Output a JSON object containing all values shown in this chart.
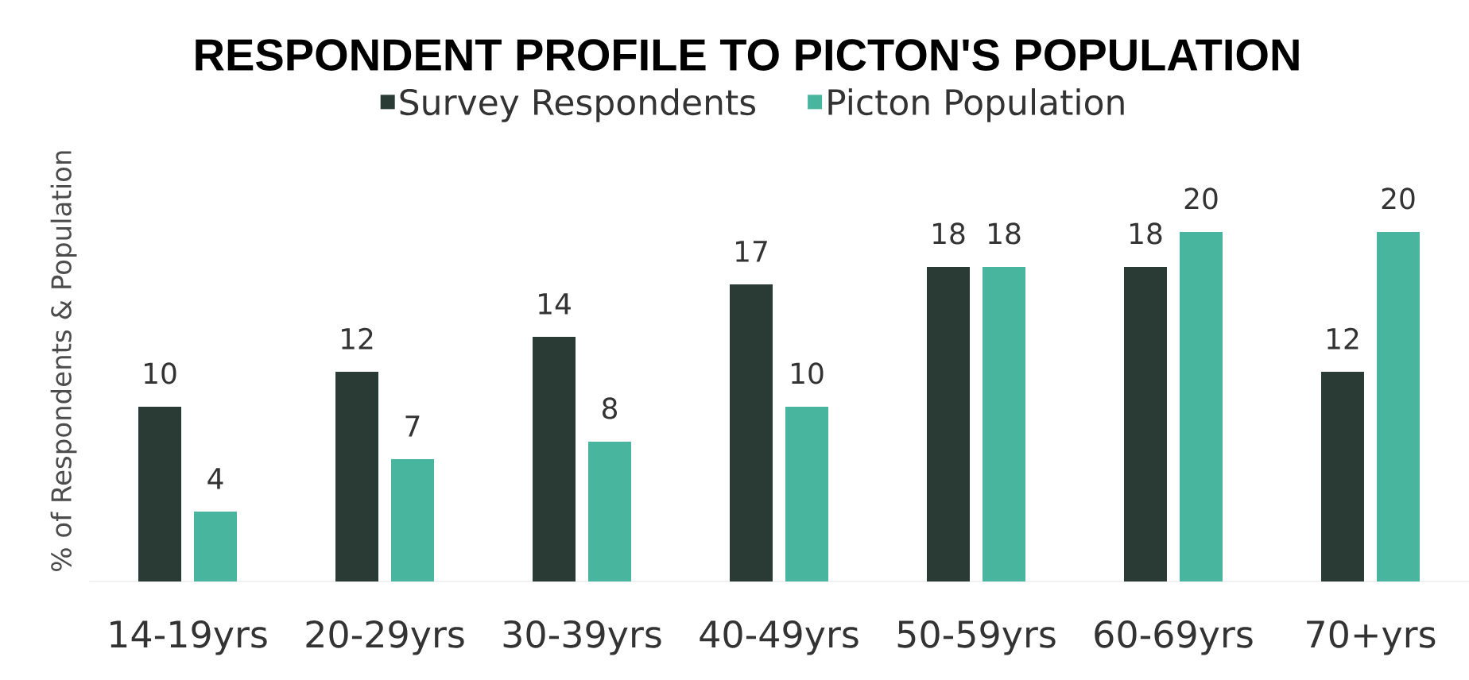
{
  "chart_data": {
    "type": "bar",
    "title": "RESPONDENT PROFILE TO PICTON'S POPULATION",
    "ylabel": "% of Respondents & Population",
    "categories": [
      "14-19yrs",
      "20-29yrs",
      "30-39yrs",
      "40-49yrs",
      "50-59yrs",
      "60-69yrs",
      "70+yrs"
    ],
    "series": [
      {
        "name": "Survey Respondents",
        "color": "#2a3b35",
        "values": [
          10,
          12,
          14,
          17,
          18,
          18,
          12
        ]
      },
      {
        "name": "Picton Population",
        "color": "#48b59e",
        "values": [
          4,
          7,
          8,
          10,
          18,
          20,
          20
        ]
      }
    ],
    "data_labels": true,
    "legend": "top",
    "tick_labels": "x"
  }
}
